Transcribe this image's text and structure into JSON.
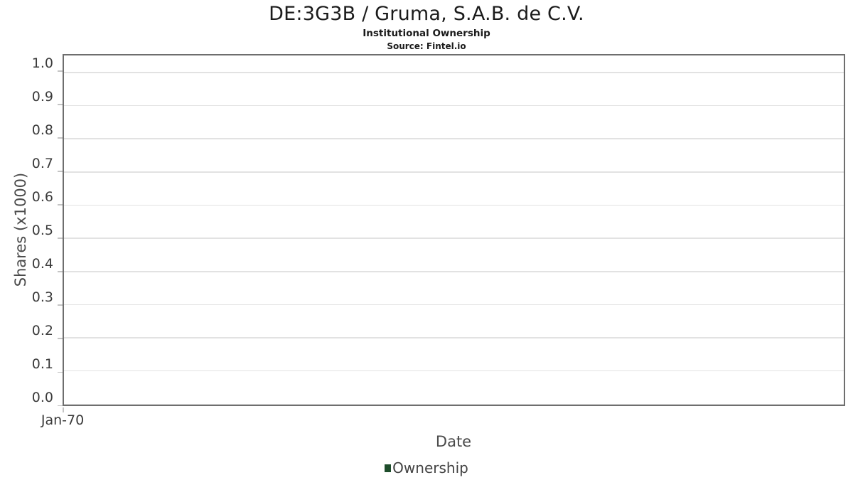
{
  "header": {
    "title": "DE:3G3B / Gruma, S.A.B. de C.V.",
    "subtitle": "Institutional Ownership",
    "source": "Source: Fintel.io"
  },
  "chart_data": {
    "type": "line",
    "title": "DE:3G3B / Gruma, S.A.B. de C.V.",
    "subtitle": "Institutional Ownership",
    "source": "Source: Fintel.io",
    "xlabel": "Date",
    "ylabel": "Shares (x1000)",
    "ylim": [
      0,
      1.053
    ],
    "yticks": [
      0.0,
      0.1,
      0.2,
      0.3,
      0.4,
      0.5,
      0.6,
      0.7,
      0.8,
      0.9,
      1.0
    ],
    "ytick_decimals": 1,
    "xticks": [
      {
        "label": "Jan-70",
        "position": 0
      }
    ],
    "grid": "horizontal",
    "grid_color": "#e2e2e2",
    "axis_color": "#6e6e6e",
    "tick_color": "#c4c4c4",
    "legend_position": "bottom",
    "series": [
      {
        "name": "Ownership",
        "color": "#1e4d2b",
        "points": []
      }
    ]
  }
}
